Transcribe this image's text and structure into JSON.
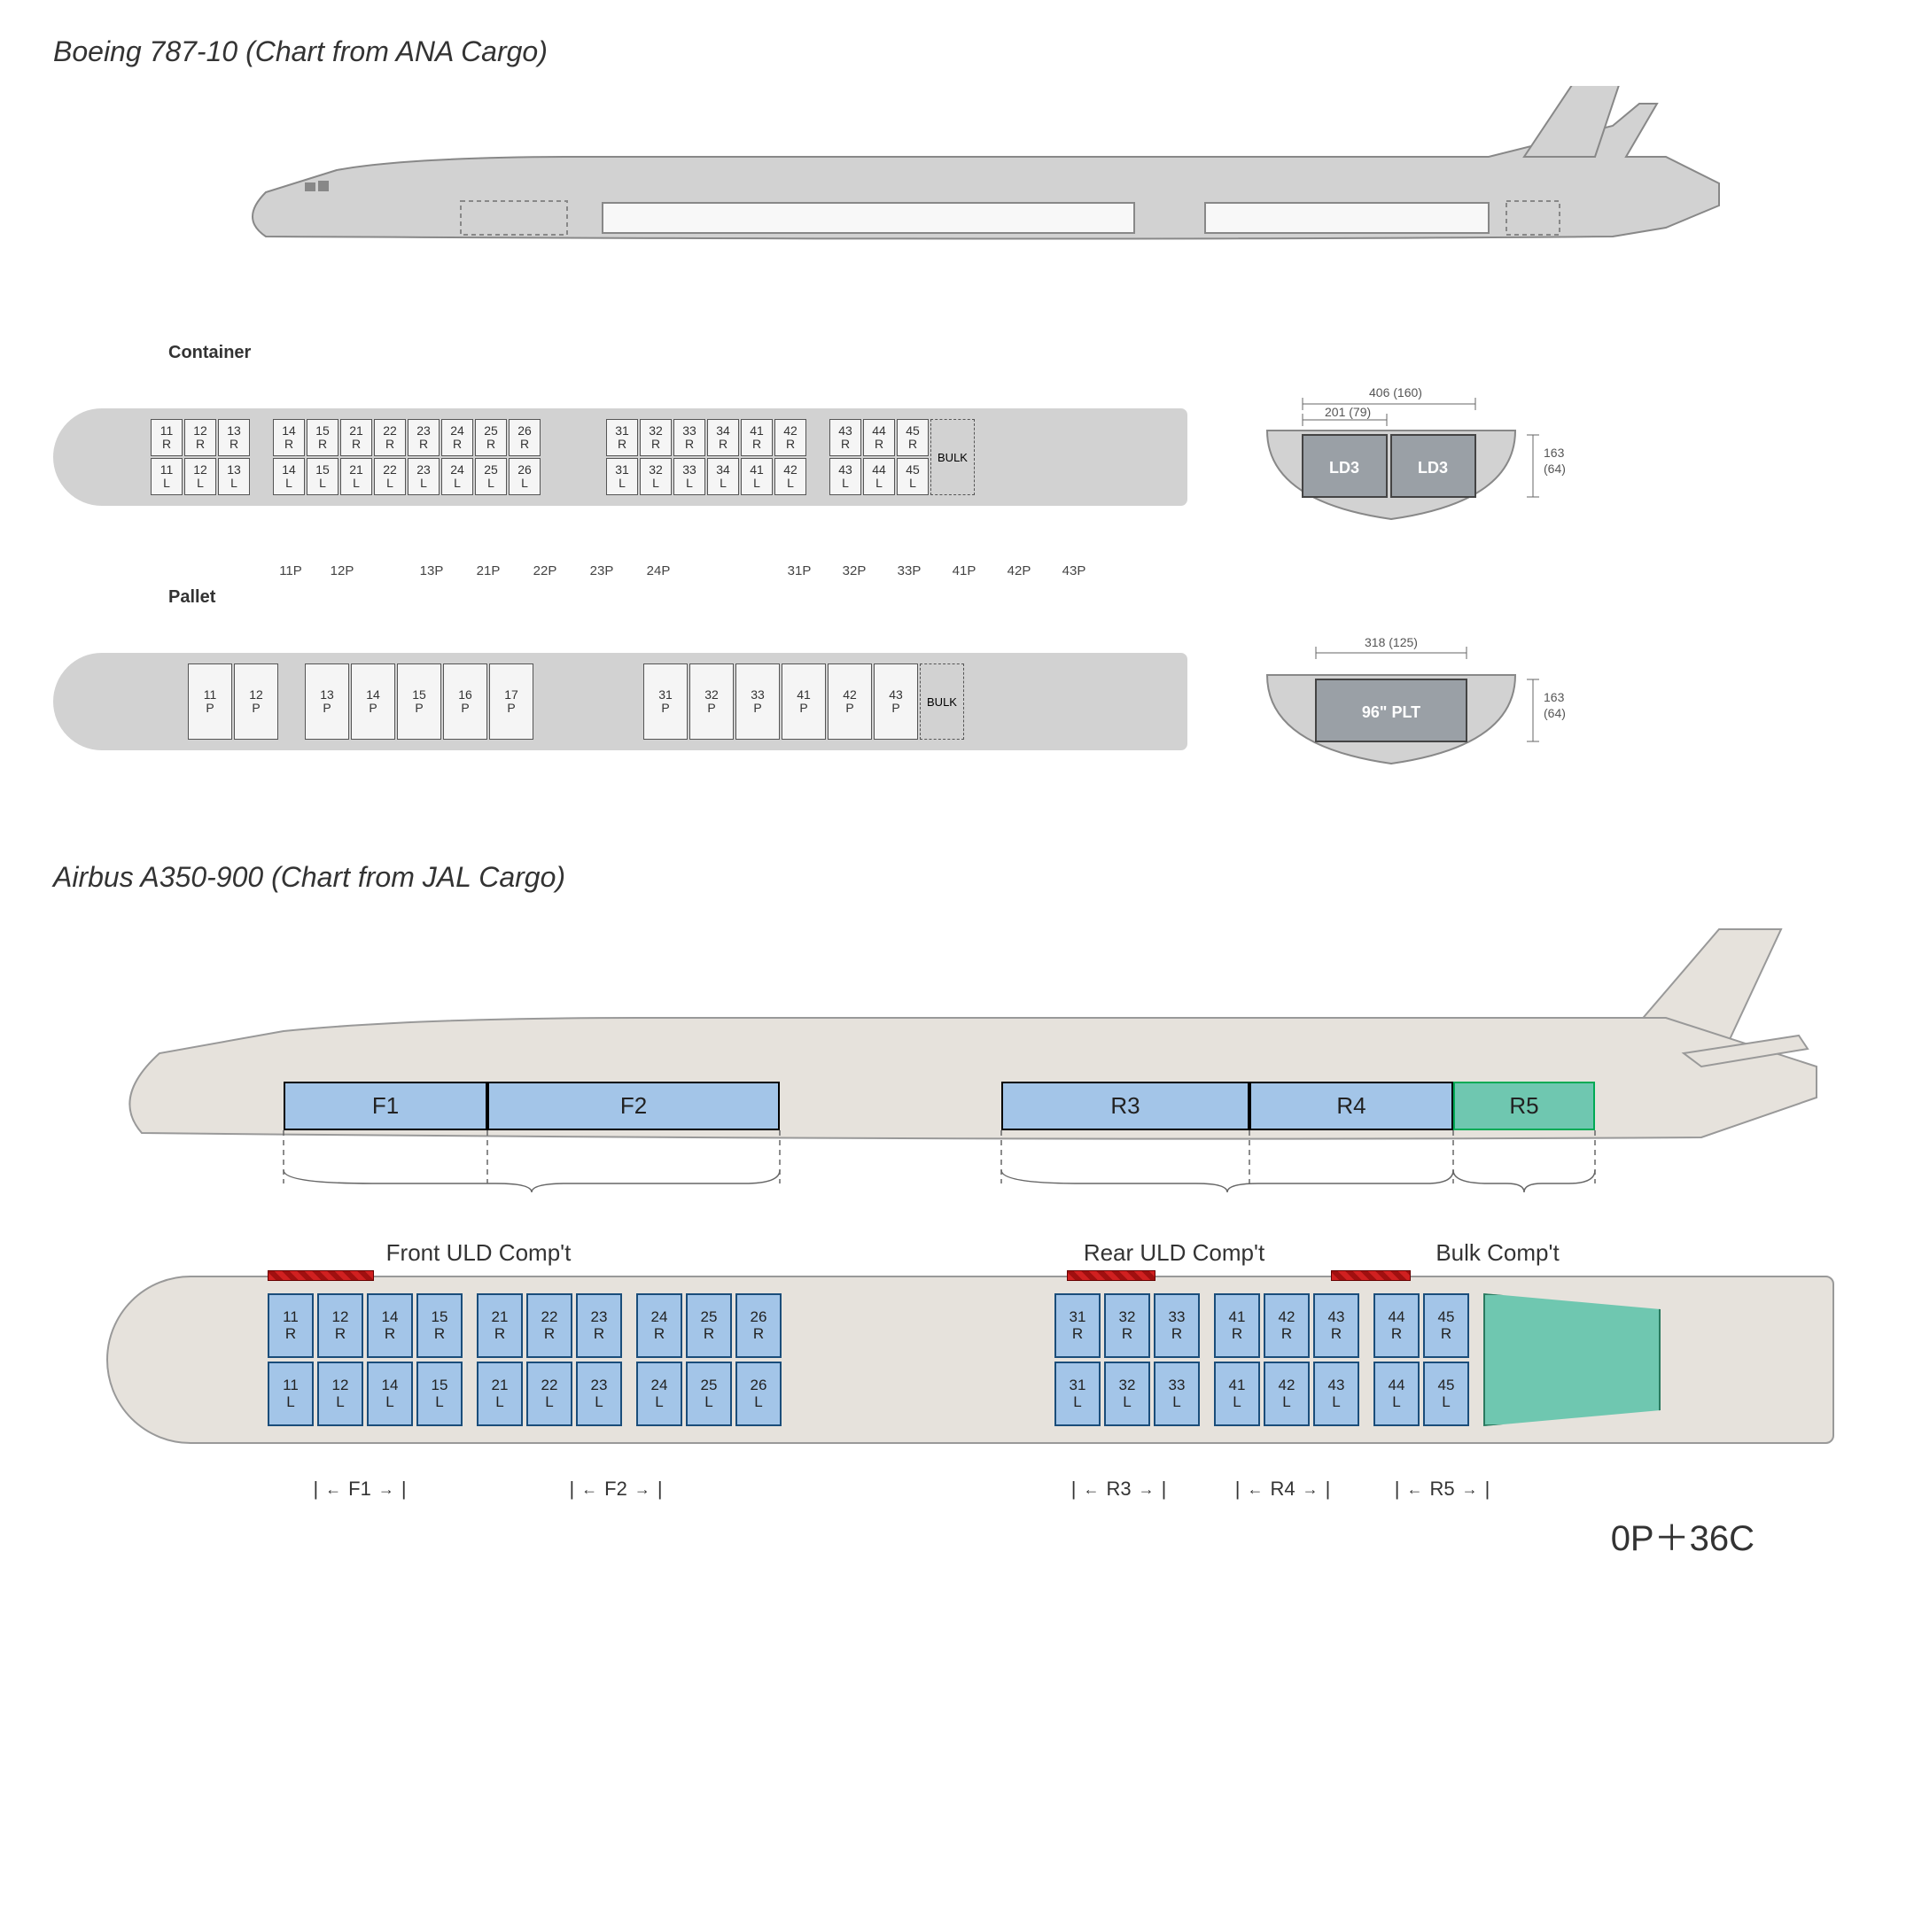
{
  "boeing": {
    "title": "Boeing 787-10 (Chart from ANA Cargo)",
    "container_label": "Container",
    "pallet_label": "Pallet",
    "bulk_label": "BULK",
    "container_front": [
      "11",
      "12",
      "13"
    ],
    "container_mid": [
      "14",
      "15",
      "21",
      "22",
      "23",
      "24",
      "25",
      "26"
    ],
    "container_aft1": [
      "31",
      "32",
      "33",
      "34",
      "41",
      "42"
    ],
    "container_aft2": [
      "43",
      "44",
      "45"
    ],
    "p_labels_front": [
      "11P",
      "12P"
    ],
    "p_labels_mid": [
      "13P",
      "21P",
      "22P",
      "23P",
      "24P"
    ],
    "p_labels_aft": [
      "31P",
      "32P",
      "33P",
      "41P",
      "42P",
      "43P"
    ],
    "pallet_front": [
      "11",
      "12"
    ],
    "pallet_mid": [
      "13",
      "14",
      "15",
      "16",
      "17"
    ],
    "pallet_aft": [
      "31",
      "32",
      "33",
      "41",
      "42",
      "43"
    ],
    "cross_container": {
      "width_cm": "406",
      "width_in": "(160)",
      "half_cm": "201",
      "half_in": "(79)",
      "height_cm": "163",
      "height_in": "(64)",
      "box_label": "LD3"
    },
    "cross_pallet": {
      "width_cm": "318",
      "width_in": "(125)",
      "height_cm": "163",
      "height_in": "(64)",
      "box_label": "96\" PLT"
    },
    "colors": {
      "hull": "#d2d2d2",
      "cell_bg": "#f5f5f5",
      "cell_border": "#555555",
      "ld3_fill": "#9aa0a6"
    }
  },
  "airbus": {
    "title": "Airbus A350-900 (Chart from JAL Cargo)",
    "compartments": [
      "F1",
      "F2",
      "R3",
      "R4",
      "R5"
    ],
    "comp_labels": {
      "front": "Front ULD Comp't",
      "rear": "Rear ULD Comp't",
      "bulk": "Bulk Comp't"
    },
    "front1": [
      "11",
      "12",
      "14",
      "15"
    ],
    "front2": [
      "21",
      "22",
      "23"
    ],
    "front3": [
      "24",
      "25",
      "26"
    ],
    "rear1": [
      "31",
      "32",
      "33"
    ],
    "rear2": [
      "41",
      "42",
      "43"
    ],
    "rear3": [
      "44",
      "45"
    ],
    "ranges": [
      "F1",
      "F2",
      "R3",
      "R4",
      "R5"
    ],
    "summary": "0P＋36C",
    "colors": {
      "hull": "#e6e2dc",
      "cell_bg": "#a3c5e8",
      "cell_border": "#1a4d7a",
      "bulk_bg": "#6fc7b0",
      "red": "#d02020"
    }
  }
}
